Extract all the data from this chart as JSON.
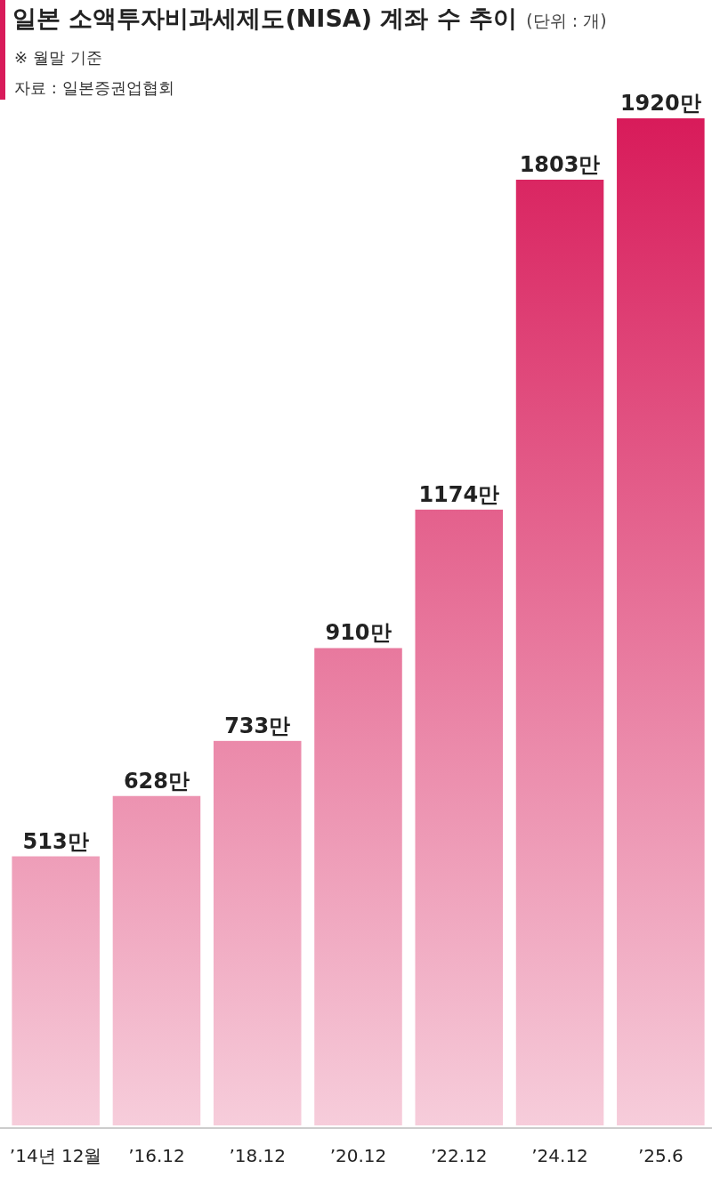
{
  "chart_data": {
    "type": "bar",
    "title": "일본 소액투자비과세제도(NISA) 계좌 수 추이",
    "subtitle": "※ 월말 기준",
    "annotations": [
      "(단위 : 개)",
      "자료 : 일본증권업협회"
    ],
    "categories": [
      "’14년 12월",
      "’16.12",
      "’18.12",
      "’20.12",
      "’22.12",
      "’24.12",
      "’25.6"
    ],
    "values": [
      513,
      628,
      733,
      910,
      1174,
      1803,
      1920
    ],
    "value_labels": [
      "513만",
      "628만",
      "733만",
      "910만",
      "1174만",
      "1803만",
      "1920만"
    ],
    "color": "#d81b5a"
  }
}
